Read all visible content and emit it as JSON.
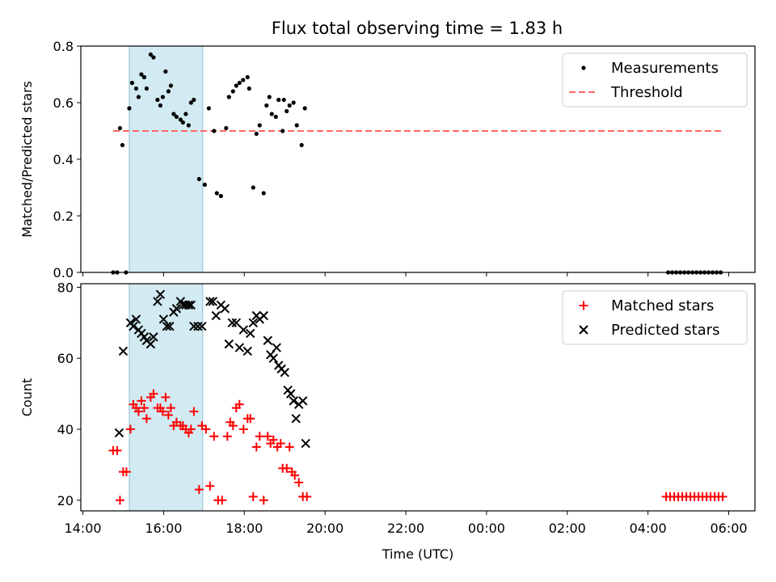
{
  "title": "Flux total observing time = 1.83 h",
  "colors": {
    "shade": "#add8e6",
    "threshold": "#ff6666",
    "matched": "#ff0000",
    "predicted": "#000000",
    "measure": "#000000"
  },
  "chart_data": [
    {
      "type": "scatter",
      "ylabel": "Matched/Predicted stars",
      "xlim": [
        13.95,
        30.65
      ],
      "ylim": [
        0,
        0.8
      ],
      "yticks": [
        "0.0",
        "0.2",
        "0.4",
        "0.6",
        "0.8"
      ],
      "ytick_values": [
        0,
        0.2,
        0.4,
        0.6,
        0.8
      ],
      "shaded_span": [
        15.15,
        16.97
      ],
      "legend": {
        "position": "upper right",
        "entries": [
          "Measurements",
          "Threshold"
        ]
      },
      "threshold": {
        "name": "Threshold",
        "value": 0.5,
        "x": [
          14.75,
          29.85
        ]
      },
      "series": [
        {
          "name": "Measurements",
          "marker": "dot",
          "points": [
            [
              14.75,
              0.0
            ],
            [
              14.85,
              0.0
            ],
            [
              15.07,
              0.0
            ],
            [
              14.92,
              0.51
            ],
            [
              14.98,
              0.45
            ],
            [
              15.15,
              0.58
            ],
            [
              15.22,
              0.67
            ],
            [
              15.32,
              0.65
            ],
            [
              15.38,
              0.62
            ],
            [
              15.45,
              0.7
            ],
            [
              15.52,
              0.69
            ],
            [
              15.58,
              0.65
            ],
            [
              15.68,
              0.77
            ],
            [
              15.75,
              0.76
            ],
            [
              15.85,
              0.61
            ],
            [
              15.92,
              0.59
            ],
            [
              15.98,
              0.62
            ],
            [
              16.05,
              0.71
            ],
            [
              16.12,
              0.64
            ],
            [
              16.18,
              0.66
            ],
            [
              16.25,
              0.56
            ],
            [
              16.32,
              0.55
            ],
            [
              16.42,
              0.54
            ],
            [
              16.48,
              0.53
            ],
            [
              16.55,
              0.56
            ],
            [
              16.62,
              0.52
            ],
            [
              16.68,
              0.6
            ],
            [
              16.75,
              0.61
            ],
            [
              16.88,
              0.33
            ],
            [
              17.12,
              0.58
            ],
            [
              17.02,
              0.31
            ],
            [
              17.25,
              0.5
            ],
            [
              17.32,
              0.28
            ],
            [
              17.42,
              0.27
            ],
            [
              17.55,
              0.51
            ],
            [
              17.62,
              0.62
            ],
            [
              17.72,
              0.64
            ],
            [
              17.8,
              0.66
            ],
            [
              17.88,
              0.67
            ],
            [
              17.97,
              0.68
            ],
            [
              18.08,
              0.69
            ],
            [
              18.12,
              0.65
            ],
            [
              18.22,
              0.3
            ],
            [
              18.3,
              0.49
            ],
            [
              18.38,
              0.52
            ],
            [
              18.48,
              0.28
            ],
            [
              18.55,
              0.59
            ],
            [
              18.62,
              0.62
            ],
            [
              18.68,
              0.56
            ],
            [
              18.78,
              0.55
            ],
            [
              18.85,
              0.61
            ],
            [
              18.95,
              0.5
            ],
            [
              18.98,
              0.61
            ],
            [
              19.05,
              0.57
            ],
            [
              19.12,
              0.59
            ],
            [
              19.22,
              0.6
            ],
            [
              19.3,
              0.52
            ],
            [
              19.42,
              0.45
            ],
            [
              19.5,
              0.58
            ],
            [
              28.5,
              0.0
            ],
            [
              28.6,
              0.0
            ],
            [
              28.7,
              0.0
            ],
            [
              28.8,
              0.0
            ],
            [
              28.9,
              0.0
            ],
            [
              29.0,
              0.0
            ],
            [
              29.1,
              0.0
            ],
            [
              29.2,
              0.0
            ],
            [
              29.3,
              0.0
            ],
            [
              29.4,
              0.0
            ],
            [
              29.5,
              0.0
            ],
            [
              29.6,
              0.0
            ],
            [
              29.7,
              0.0
            ],
            [
              29.8,
              0.0
            ]
          ]
        }
      ]
    },
    {
      "type": "scatter",
      "xlabel": "Time (UTC)",
      "ylabel": "Count",
      "xlim": [
        13.95,
        30.65
      ],
      "ylim": [
        17,
        81
      ],
      "xticks": [
        "14:00",
        "16:00",
        "18:00",
        "20:00",
        "22:00",
        "00:00",
        "02:00",
        "04:00",
        "06:00"
      ],
      "xtick_values": [
        14,
        16,
        18,
        20,
        22,
        24,
        26,
        28,
        30
      ],
      "yticks": [
        "20",
        "40",
        "60",
        "80"
      ],
      "ytick_values": [
        20,
        40,
        60,
        80
      ],
      "shaded_span": [
        15.15,
        16.97
      ],
      "legend": {
        "position": "upper right",
        "entries": [
          "Matched stars",
          "Predicted stars"
        ]
      },
      "series": [
        {
          "name": "Matched stars",
          "marker": "plus",
          "points": [
            [
              14.75,
              34
            ],
            [
              14.85,
              34
            ],
            [
              14.92,
              20
            ],
            [
              15.0,
              28
            ],
            [
              15.08,
              28
            ],
            [
              15.18,
              40
            ],
            [
              15.25,
              47
            ],
            [
              15.32,
              46
            ],
            [
              15.38,
              45
            ],
            [
              15.45,
              48
            ],
            [
              15.52,
              46
            ],
            [
              15.58,
              43
            ],
            [
              15.68,
              49
            ],
            [
              15.75,
              50
            ],
            [
              15.85,
              46
            ],
            [
              15.92,
              46
            ],
            [
              15.98,
              45
            ],
            [
              16.05,
              49
            ],
            [
              16.12,
              44
            ],
            [
              16.18,
              46
            ],
            [
              16.25,
              41
            ],
            [
              16.32,
              42
            ],
            [
              16.42,
              41
            ],
            [
              16.48,
              41
            ],
            [
              16.55,
              40
            ],
            [
              16.62,
              39
            ],
            [
              16.68,
              40
            ],
            [
              16.75,
              45
            ],
            [
              16.88,
              23
            ],
            [
              16.95,
              41
            ],
            [
              17.05,
              40
            ],
            [
              17.15,
              24
            ],
            [
              17.25,
              38
            ],
            [
              17.35,
              20
            ],
            [
              17.45,
              20
            ],
            [
              17.58,
              38
            ],
            [
              17.65,
              42
            ],
            [
              17.72,
              41
            ],
            [
              17.8,
              46
            ],
            [
              17.88,
              47
            ],
            [
              17.98,
              40
            ],
            [
              18.08,
              43
            ],
            [
              18.15,
              43
            ],
            [
              18.22,
              21
            ],
            [
              18.3,
              35
            ],
            [
              18.38,
              38
            ],
            [
              18.48,
              20
            ],
            [
              18.58,
              38
            ],
            [
              18.65,
              36
            ],
            [
              18.72,
              37
            ],
            [
              18.82,
              35
            ],
            [
              18.9,
              36
            ],
            [
              18.95,
              29
            ],
            [
              19.05,
              29
            ],
            [
              19.12,
              35
            ],
            [
              19.18,
              28
            ],
            [
              19.25,
              27
            ],
            [
              19.35,
              25
            ],
            [
              19.45,
              21
            ],
            [
              19.55,
              21
            ],
            [
              28.45,
              21
            ],
            [
              28.55,
              21
            ],
            [
              28.65,
              21
            ],
            [
              28.75,
              21
            ],
            [
              28.85,
              21
            ],
            [
              28.95,
              21
            ],
            [
              29.05,
              21
            ],
            [
              29.15,
              21
            ],
            [
              29.25,
              21
            ],
            [
              29.35,
              21
            ],
            [
              29.45,
              21
            ],
            [
              29.55,
              21
            ],
            [
              29.65,
              21
            ],
            [
              29.75,
              21
            ],
            [
              29.85,
              21
            ]
          ]
        },
        {
          "name": "Predicted stars",
          "marker": "x",
          "points": [
            [
              14.9,
              39
            ],
            [
              15.0,
              62
            ],
            [
              15.18,
              70
            ],
            [
              15.25,
              69
            ],
            [
              15.32,
              71
            ],
            [
              15.38,
              68
            ],
            [
              15.45,
              67
            ],
            [
              15.52,
              66
            ],
            [
              15.58,
              65
            ],
            [
              15.68,
              64
            ],
            [
              15.75,
              66
            ],
            [
              15.85,
              76
            ],
            [
              15.92,
              78
            ],
            [
              16.0,
              71
            ],
            [
              16.08,
              69
            ],
            [
              16.15,
              69
            ],
            [
              16.25,
              73
            ],
            [
              16.32,
              74
            ],
            [
              16.42,
              76
            ],
            [
              16.48,
              75
            ],
            [
              16.55,
              75
            ],
            [
              16.62,
              75
            ],
            [
              16.68,
              75
            ],
            [
              16.75,
              69
            ],
            [
              16.85,
              69
            ],
            [
              16.95,
              69
            ],
            [
              17.15,
              76
            ],
            [
              17.22,
              76
            ],
            [
              17.3,
              72
            ],
            [
              17.42,
              75
            ],
            [
              17.52,
              74
            ],
            [
              17.62,
              64
            ],
            [
              17.7,
              70
            ],
            [
              17.8,
              70
            ],
            [
              17.88,
              63
            ],
            [
              17.98,
              68
            ],
            [
              18.08,
              62
            ],
            [
              18.15,
              67
            ],
            [
              18.22,
              70
            ],
            [
              18.3,
              72
            ],
            [
              18.38,
              71
            ],
            [
              18.48,
              72
            ],
            [
              18.58,
              65
            ],
            [
              18.65,
              61
            ],
            [
              18.72,
              60
            ],
            [
              18.8,
              63
            ],
            [
              18.85,
              58
            ],
            [
              18.92,
              57
            ],
            [
              19.0,
              56
            ],
            [
              19.08,
              51
            ],
            [
              19.15,
              50
            ],
            [
              19.22,
              48
            ],
            [
              19.28,
              43
            ],
            [
              19.35,
              47
            ],
            [
              19.45,
              48
            ],
            [
              19.52,
              36
            ]
          ]
        }
      ]
    }
  ]
}
